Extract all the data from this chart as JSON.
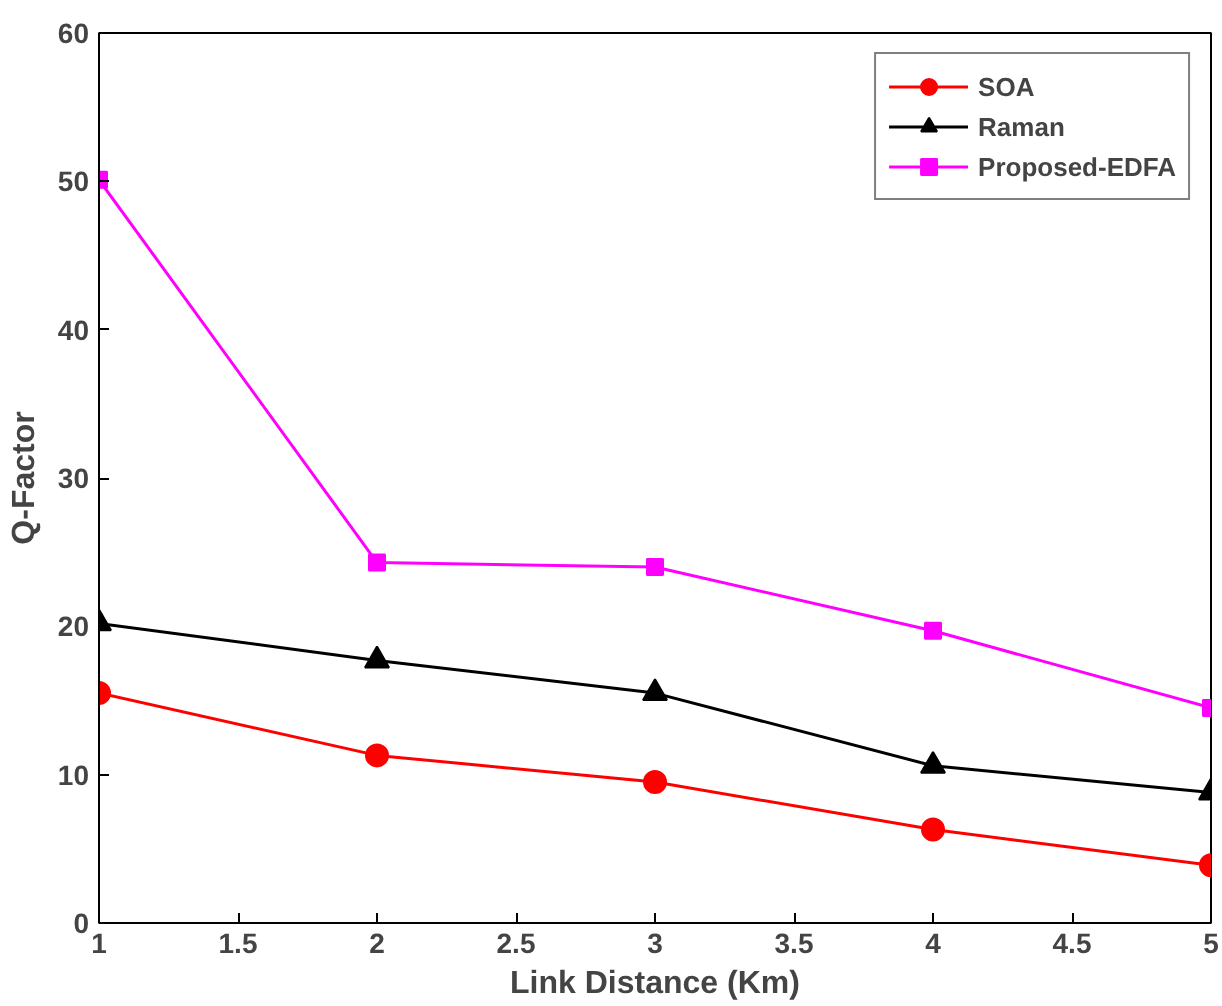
{
  "chart_data": {
    "type": "line",
    "xlabel": "Link Distance (Km)",
    "ylabel": "Q-Factor",
    "x": [
      1,
      2,
      3,
      4,
      5
    ],
    "series": [
      {
        "name": "SOA",
        "color": "#ff0000",
        "marker": "circle",
        "values": [
          15.5,
          11.3,
          9.5,
          6.3,
          3.9
        ]
      },
      {
        "name": "Raman",
        "color": "#000000",
        "marker": "triangle",
        "values": [
          20.2,
          17.7,
          15.5,
          10.6,
          8.8
        ]
      },
      {
        "name": "Proposed-EDFA",
        "color": "#ff00ff",
        "marker": "square",
        "values": [
          50.1,
          24.3,
          24.0,
          19.7,
          14.5
        ]
      }
    ],
    "xlim": [
      1,
      5
    ],
    "ylim": [
      0,
      60
    ],
    "xticks": [
      1,
      1.5,
      2,
      2.5,
      3,
      3.5,
      4,
      4.5,
      5
    ],
    "yticks": [
      0,
      10,
      20,
      30,
      40,
      50,
      60
    ],
    "grid": false,
    "legend": "top right",
    "line_style": "solid"
  }
}
